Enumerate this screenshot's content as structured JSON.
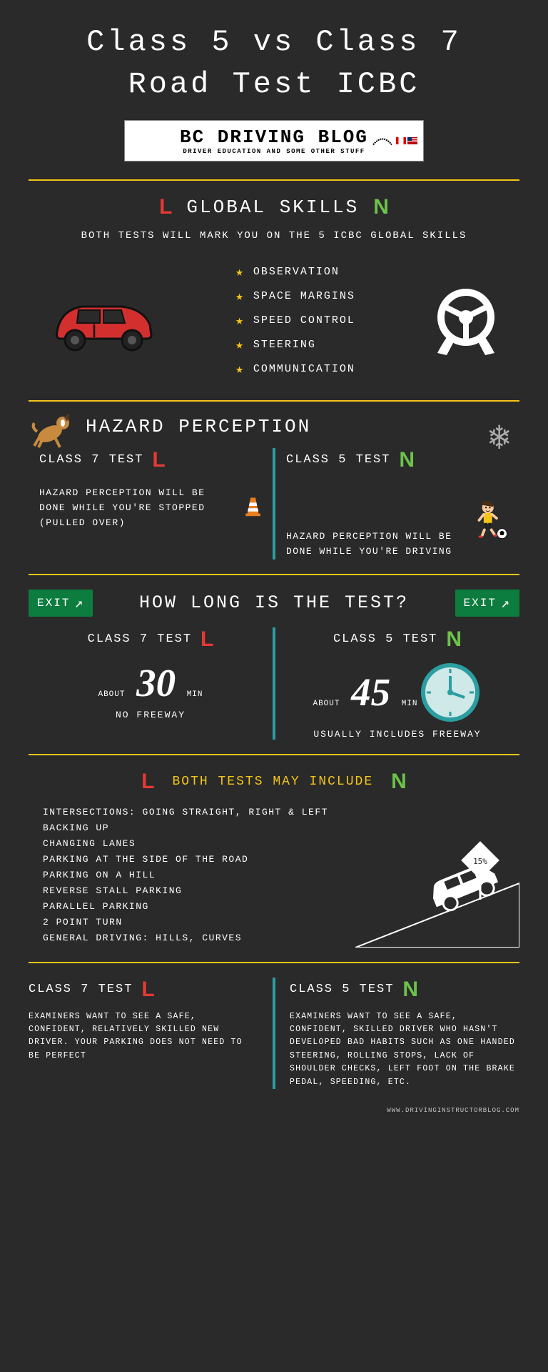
{
  "title": "Class 5 vs Class 7\nRoad Test ICBC",
  "logo": {
    "name": "BC DRIVING BLOG",
    "sub": "DRIVER EDUCATION AND SOME OTHER STUFF"
  },
  "colors": {
    "accent": "#f5c518",
    "L": "#e53935",
    "N": "#6cc24a",
    "teal": "#2a9ea0",
    "exit": "#0d7c3f",
    "bg": "#2a2a2a"
  },
  "global_skills": {
    "header": "GLOBAL SKILLS",
    "sub": "BOTH TESTS WILL MARK YOU ON THE 5 ICBC GLOBAL SKILLS",
    "items": [
      "OBSERVATION",
      "SPACE MARGINS",
      "SPEED CONTROL",
      "STEERING",
      "COMMUNICATION"
    ]
  },
  "hazard": {
    "header": "HAZARD PERCEPTION",
    "class7_title": "CLASS 7 TEST",
    "class7_text": "HAZARD PERCEPTION WILL BE DONE WHILE YOU'RE STOPPED (PULLED OVER)",
    "class5_title": "CLASS 5 TEST",
    "class5_text": "HAZARD PERCEPTION WILL BE DONE WHILE YOU'RE DRIVING"
  },
  "duration": {
    "header": "HOW LONG IS THE TEST?",
    "exit_label": "EXIT",
    "class7_title": "CLASS 7 TEST",
    "class7_num": "30",
    "class7_about": "ABOUT",
    "class7_min": "MIN",
    "class7_note": "NO FREEWAY",
    "class5_title": "CLASS 5 TEST",
    "class5_num": "45",
    "class5_about": "ABOUT",
    "class5_min": "MIN",
    "class5_note": "USUALLY INCLUDES FREEWAY"
  },
  "includes": {
    "header": "BOTH TESTS MAY INCLUDE",
    "items": [
      "INTERSECTIONS: GOING STRAIGHT, RIGHT & LEFT",
      "BACKING UP",
      "CHANGING LANES",
      "PARKING AT THE SIDE OF THE ROAD",
      "PARKING ON A HILL",
      "REVERSE STALL PARKING",
      "PARALLEL PARKING",
      "2 POINT TURN",
      "GENERAL DRIVING: HILLS, CURVES"
    ],
    "hill_grade": "15%"
  },
  "bottom": {
    "class7_title": "CLASS 7 TEST",
    "class7_text": "EXAMINERS WANT TO SEE A SAFE, CONFIDENT, RELATIVELY SKILLED NEW DRIVER. YOUR PARKING DOES NOT NEED TO BE PERFECT",
    "class5_title": "CLASS 5 TEST",
    "class5_text": "EXAMINERS WANT TO SEE A SAFE, CONFIDENT, SKILLED DRIVER WHO HASN'T DEVELOPED BAD HABITS SUCH AS ONE HANDED STEERING, ROLLING STOPS, LACK OF SHOULDER CHECKS, LEFT FOOT ON THE BRAKE PEDAL, SPEEDING, ETC."
  },
  "footer_url": "WWW.DRIVINGINSTRUCTORBLOG.COM"
}
